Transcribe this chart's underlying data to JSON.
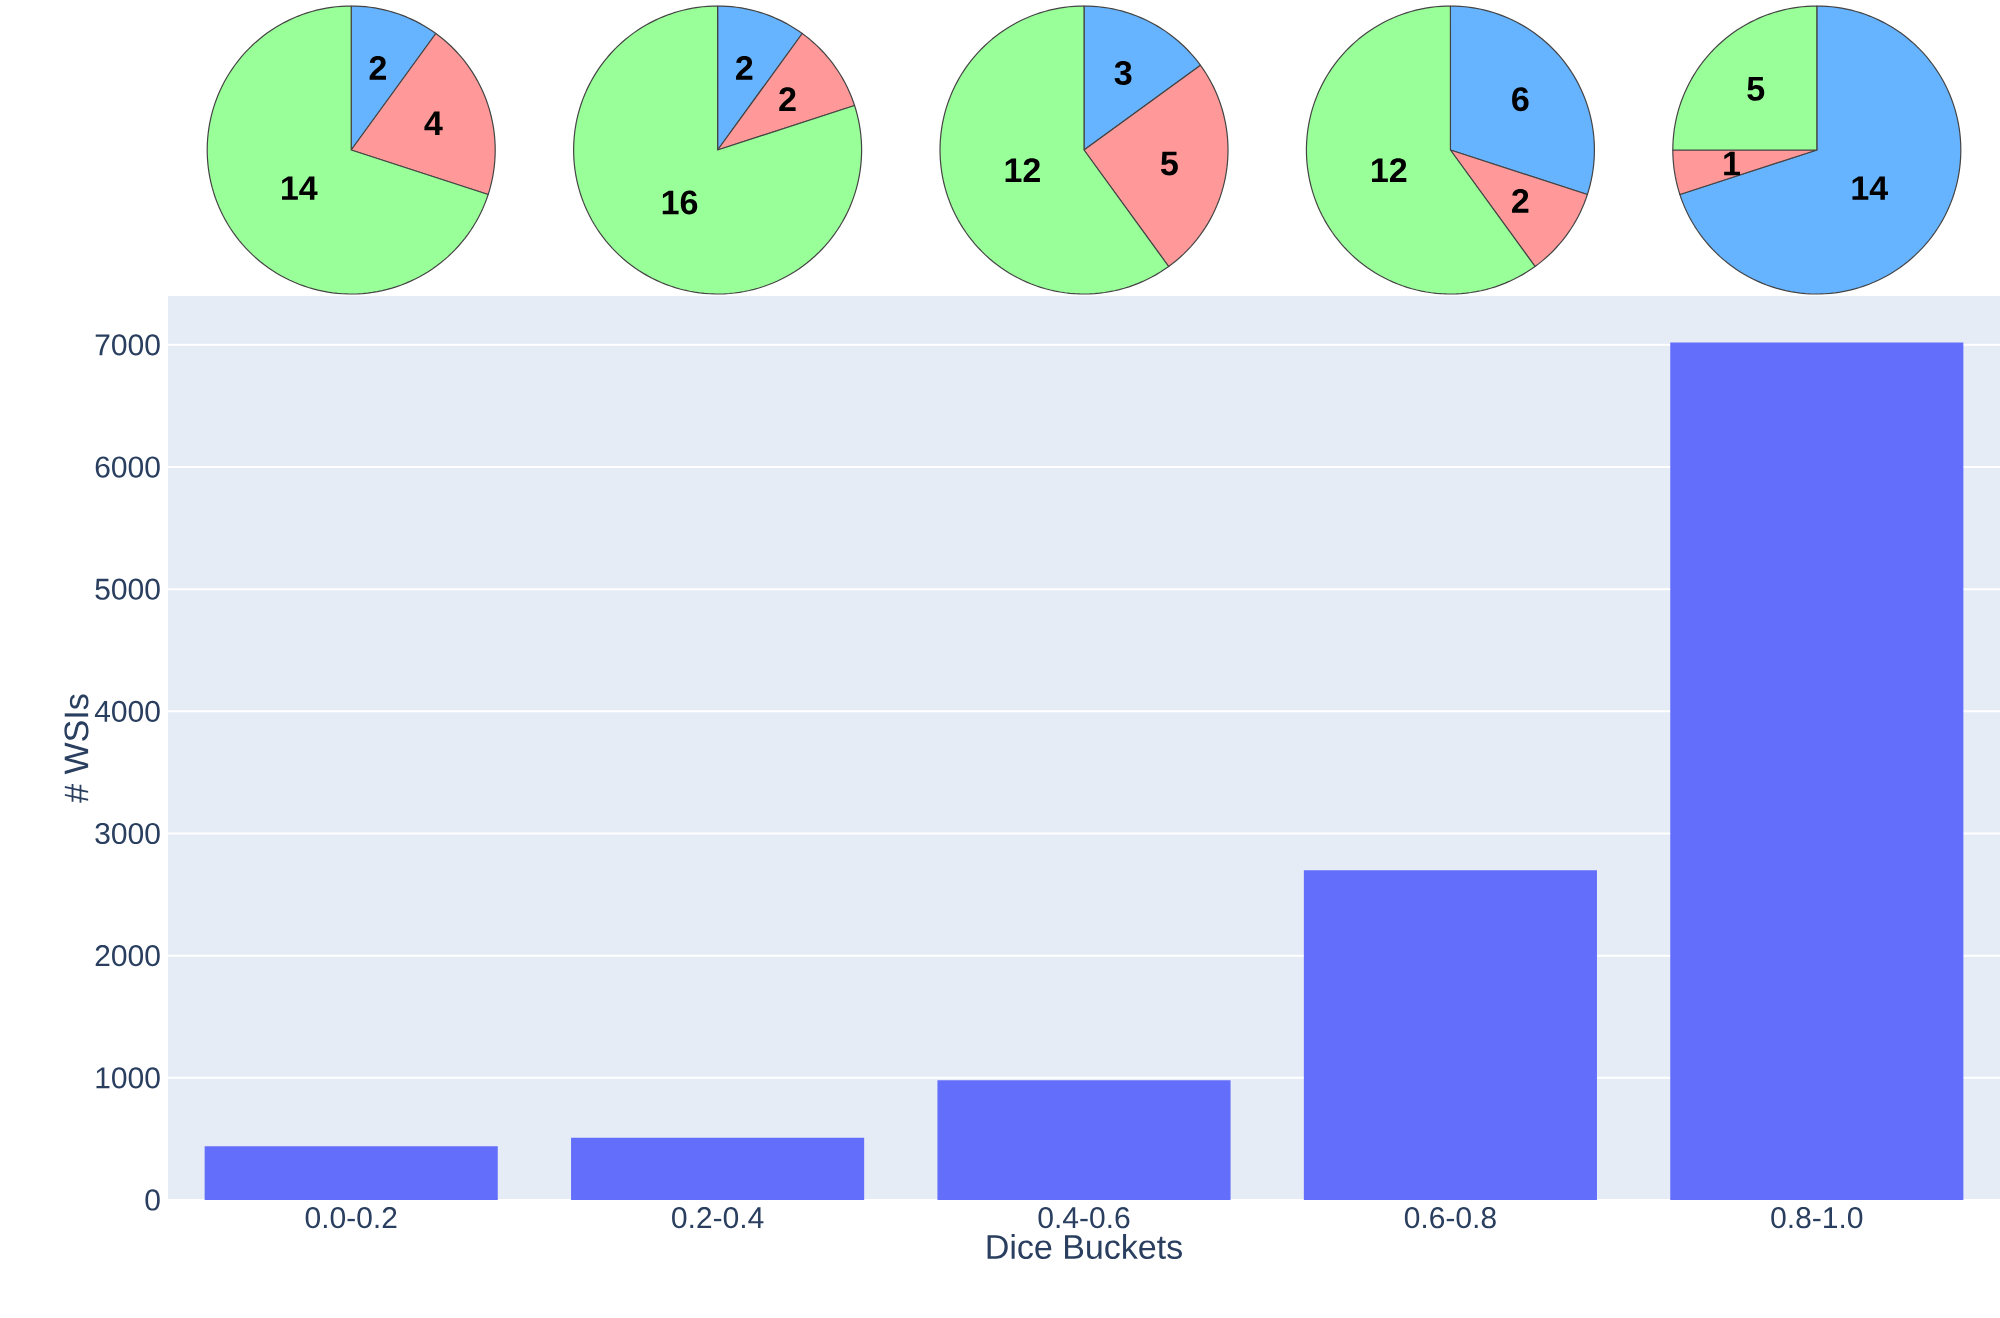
{
  "chart_data": [
    {
      "type": "pie",
      "categories": [
        null,
        null,
        null
      ],
      "values": [
        2,
        4,
        14
      ],
      "colors": [
        "#66b3ff",
        "#ff9999",
        "#99ff99"
      ],
      "data_labels": true
    },
    {
      "type": "pie",
      "categories": [
        null,
        null,
        null
      ],
      "values": [
        2,
        2,
        16
      ],
      "colors": [
        "#66b3ff",
        "#ff9999",
        "#99ff99"
      ],
      "data_labels": true
    },
    {
      "type": "pie",
      "categories": [
        null,
        null,
        null
      ],
      "values": [
        3,
        5,
        12
      ],
      "colors": [
        "#66b3ff",
        "#ff9999",
        "#99ff99"
      ],
      "data_labels": true
    },
    {
      "type": "pie",
      "categories": [
        null,
        null,
        null
      ],
      "values": [
        6,
        2,
        12
      ],
      "colors": [
        "#66b3ff",
        "#ff9999",
        "#99ff99"
      ],
      "data_labels": true
    },
    {
      "type": "pie",
      "categories": [
        null,
        null,
        null
      ],
      "values": [
        14,
        1,
        5
      ],
      "colors": [
        "#66b3ff",
        "#ff9999",
        "#99ff99"
      ],
      "data_labels": true
    },
    {
      "type": "bar",
      "categories": [
        "0.0-0.2",
        "0.2-0.4",
        "0.4-0.6",
        "0.6-0.8",
        "0.8-1.0"
      ],
      "values": [
        440,
        510,
        980,
        2700,
        7020
      ],
      "color": "#636efa",
      "xlabel": "Dice Buckets",
      "ylabel": "# WSIs",
      "ylim": [
        0,
        7400
      ],
      "yticks": [
        0,
        1000,
        2000,
        3000,
        4000,
        5000,
        6000,
        7000
      ],
      "grid": "y"
    }
  ]
}
